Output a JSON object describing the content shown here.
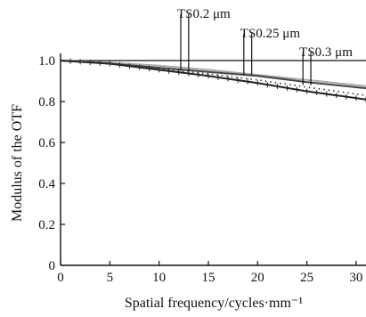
{
  "chart_data": {
    "type": "line",
    "title": "",
    "xlabel": "Spatial frequency/cycles·mm⁻¹",
    "ylabel": "Modulus of the OTF",
    "xlim": [
      0,
      31
    ],
    "ylim": [
      0,
      1.0
    ],
    "x_ticks": [
      0,
      5,
      10,
      15,
      20,
      25,
      30
    ],
    "y_ticks": [
      0,
      0.2,
      0.4,
      0.6,
      0.8,
      1.0
    ],
    "x_tick_labels": [
      "0",
      "5",
      "10",
      "15",
      "20",
      "25",
      "30"
    ],
    "y_tick_labels": [
      "0",
      "0.2",
      "0.4",
      "0.6",
      "0.8",
      "1.0"
    ],
    "grid": false,
    "series": [
      {
        "color": "#aaaaaa",
        "style": "solid",
        "x": [
          0,
          5,
          10,
          15,
          20,
          25,
          31
        ],
        "y": [
          1.0,
          0.99,
          0.975,
          0.955,
          0.93,
          0.905,
          0.875
        ]
      },
      {
        "color": "#444444",
        "style": "solid",
        "x": [
          0,
          5,
          10,
          15,
          20,
          25,
          31
        ],
        "y": [
          1.0,
          0.985,
          0.965,
          0.945,
          0.925,
          0.895,
          0.865
        ]
      },
      {
        "color": "#222222",
        "style": "ticked",
        "x": [
          0,
          5,
          10,
          15,
          20,
          25,
          31
        ],
        "y": [
          1.0,
          0.985,
          0.955,
          0.925,
          0.89,
          0.85,
          0.81
        ]
      },
      {
        "color": "#333333",
        "style": "dotted",
        "x": [
          0,
          5,
          10,
          15,
          20,
          25,
          31
        ],
        "y": [
          1.0,
          0.985,
          0.96,
          0.935,
          0.905,
          0.87,
          0.83
        ]
      }
    ],
    "annotations": [
      {
        "text": "TS0.2 μm",
        "x": [
          12.2,
          13.0
        ]
      },
      {
        "text": "TS0.25 μm",
        "x": [
          18.6,
          19.4
        ]
      },
      {
        "text": "TS0.3 μm",
        "x": [
          24.6,
          25.4
        ]
      }
    ]
  }
}
